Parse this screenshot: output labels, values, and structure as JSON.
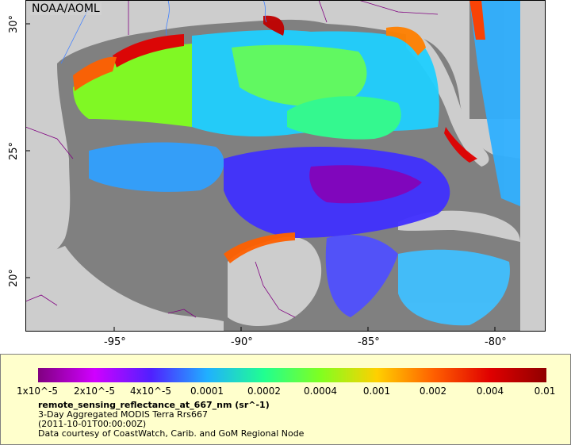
{
  "map": {
    "org": "NOAA/AOML",
    "lat_ticks": [
      "30°",
      "25°",
      "20°"
    ],
    "lon_ticks": [
      "-95°",
      "-90°",
      "-85°",
      "-80°"
    ],
    "land_color": "#cdcdcd",
    "nodata_color": "#808080",
    "water_color": "#ffffff",
    "border_color": "#800080"
  },
  "legend": {
    "ticks": [
      "1x10^-5",
      "2x10^-5",
      "4x10^-5",
      "0.0001",
      "0.0002",
      "0.0004",
      "0.001",
      "0.002",
      "0.004",
      "0.01"
    ],
    "colors": [
      "#800080",
      "#d000ff",
      "#5020ff",
      "#20b0ff",
      "#20ff90",
      "#80ff20",
      "#ffd000",
      "#ff6000",
      "#e00000",
      "#900000"
    ],
    "variable": "remote_sensing_reflectance_at_667_nm (sr^-1)",
    "line1": "3-Day Aggregated MODIS Terra Rrs667",
    "line2": "(2011-10-01T00:00:00Z)",
    "line3": "Data courtesy of CoastWatch, Carib. and GoM Regional Node"
  }
}
